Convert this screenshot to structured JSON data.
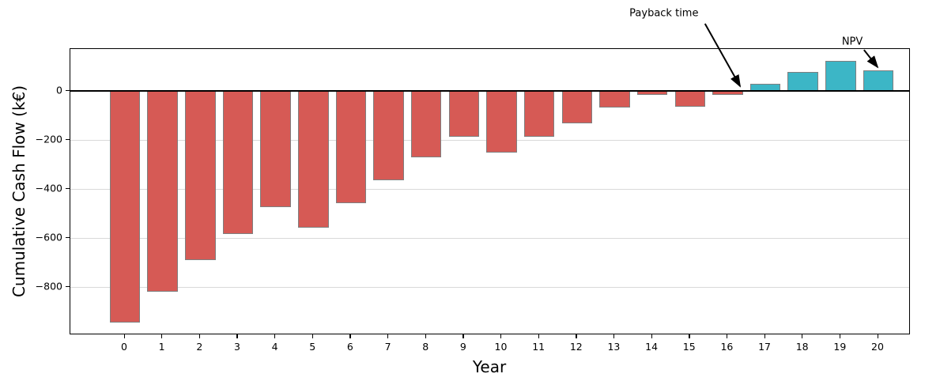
{
  "chart_data": {
    "type": "bar",
    "title": "",
    "xlabel": "Year",
    "ylabel": "Cumulative Cash Flow (k€)",
    "categories": [
      "0",
      "1",
      "2",
      "3",
      "4",
      "5",
      "6",
      "7",
      "8",
      "9",
      "10",
      "11",
      "12",
      "13",
      "14",
      "15",
      "16",
      "17",
      "18",
      "19",
      "20"
    ],
    "values": [
      -945,
      -820,
      -690,
      -585,
      -474,
      -559,
      -458,
      -364,
      -272,
      -188,
      -253,
      -188,
      -132,
      -68,
      -16,
      -66,
      -15,
      30,
      76,
      124,
      84
    ],
    "ylim": [
      -997,
      171
    ],
    "yticks": [
      {
        "value": 0,
        "label": "0"
      },
      {
        "value": -200,
        "label": "−200"
      },
      {
        "value": -400,
        "label": "−400"
      },
      {
        "value": -600,
        "label": "−600"
      },
      {
        "value": -800,
        "label": "−800"
      }
    ],
    "grid": "horizontal",
    "legend": "none",
    "zero_line": true,
    "colors": {
      "negative_bar": "#d65a55",
      "positive_bar": "#3cb6c6",
      "bar_edge": "#7f7f7f",
      "grid": "#d9d9d9",
      "zero_line": "#000000"
    },
    "annotations": [
      {
        "text": "Payback time",
        "text_pos": [
          14.33,
          313
        ],
        "arrow_from": [
          15.42,
          271
        ],
        "arrow_to": [
          16.35,
          16
        ]
      },
      {
        "text": "NPV",
        "text_pos": [
          19.33,
          197
        ],
        "arrow_from": [
          19.64,
          164
        ],
        "arrow_to": [
          20.0,
          94
        ]
      }
    ]
  }
}
